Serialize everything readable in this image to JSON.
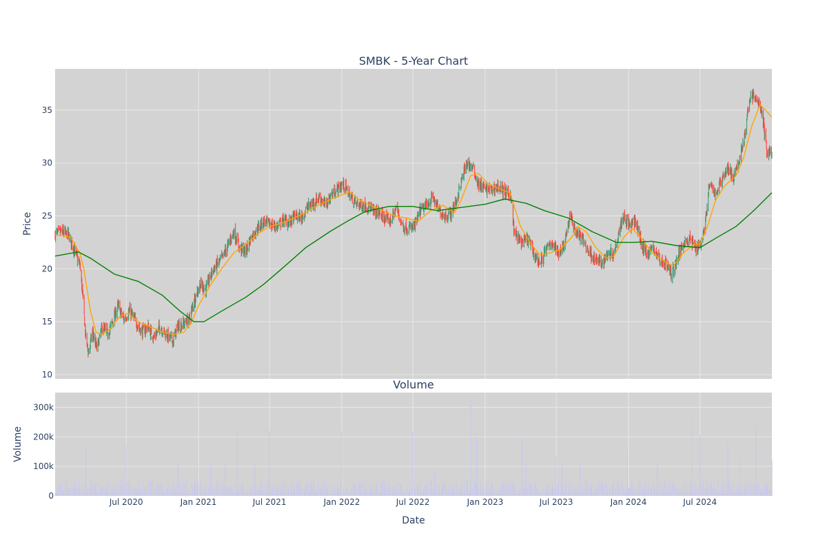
{
  "chart_data": [
    {
      "type": "candlestick",
      "title": "SMBK - 5-Year Chart",
      "ylabel": "Price",
      "xlabel": "",
      "ylim": [
        9.6,
        38.9
      ],
      "xlim": [
        "2020-01-02",
        "2024-12-31"
      ],
      "yticks": [
        10,
        15,
        20,
        25,
        30,
        35
      ],
      "xticks": [
        "2020-07-01",
        "2021-01-01",
        "2021-07-01",
        "2022-01-01",
        "2022-07-01",
        "2023-01-01",
        "2023-07-01",
        "2024-01-01",
        "2024-07-01"
      ],
      "grid": true,
      "colors": {
        "up": "#3d9970",
        "down": "#ff4136",
        "ma_short": "#ffa500",
        "ma_long": "#008000",
        "plot_bg": "#d3d3d3"
      },
      "close_path": [
        [
          "2020-01-02",
          23.3
        ],
        [
          "2020-01-20",
          23.5
        ],
        [
          "2020-02-05",
          23.2
        ],
        [
          "2020-02-20",
          21.8
        ],
        [
          "2020-03-05",
          20.3
        ],
        [
          "2020-03-12",
          17.5
        ],
        [
          "2020-03-20",
          13.5
        ],
        [
          "2020-03-27",
          12.0
        ],
        [
          "2020-04-06",
          14.0
        ],
        [
          "2020-04-17",
          12.4
        ],
        [
          "2020-05-01",
          14.5
        ],
        [
          "2020-05-15",
          13.8
        ],
        [
          "2020-06-01",
          15.5
        ],
        [
          "2020-06-10",
          16.5
        ],
        [
          "2020-06-25",
          15.2
        ],
        [
          "2020-07-10",
          16.0
        ],
        [
          "2020-07-25",
          15.0
        ],
        [
          "2020-08-10",
          14.0
        ],
        [
          "2020-08-25",
          14.5
        ],
        [
          "2020-09-10",
          13.5
        ],
        [
          "2020-09-25",
          14.5
        ],
        [
          "2020-10-10",
          13.8
        ],
        [
          "2020-10-28",
          13.2
        ],
        [
          "2020-11-10",
          14.6
        ],
        [
          "2020-11-25",
          14.8
        ],
        [
          "2020-12-10",
          15.3
        ],
        [
          "2020-12-22",
          17.2
        ],
        [
          "2021-01-05",
          18.5
        ],
        [
          "2021-01-20",
          18.1
        ],
        [
          "2021-02-05",
          19.8
        ],
        [
          "2021-02-20",
          20.5
        ],
        [
          "2021-03-05",
          21.2
        ],
        [
          "2021-03-20",
          22.5
        ],
        [
          "2021-04-01",
          23.5
        ],
        [
          "2021-04-15",
          22.0
        ],
        [
          "2021-05-01",
          21.6
        ],
        [
          "2021-05-15",
          23.0
        ],
        [
          "2021-05-31",
          23.8
        ],
        [
          "2021-06-15",
          24.5
        ],
        [
          "2021-07-01",
          24.2
        ],
        [
          "2021-07-20",
          24.0
        ],
        [
          "2021-08-05",
          24.6
        ],
        [
          "2021-08-20",
          24.4
        ],
        [
          "2021-09-05",
          25.0
        ],
        [
          "2021-09-20",
          24.8
        ],
        [
          "2021-10-05",
          25.8
        ],
        [
          "2021-10-20",
          26.2
        ],
        [
          "2021-11-05",
          26.8
        ],
        [
          "2021-11-20",
          26.0
        ],
        [
          "2021-12-05",
          27.0
        ],
        [
          "2021-12-20",
          27.5
        ],
        [
          "2022-01-05",
          28.0
        ],
        [
          "2022-01-20",
          27.0
        ],
        [
          "2022-02-05",
          26.2
        ],
        [
          "2022-02-20",
          26.0
        ],
        [
          "2022-03-05",
          26.0
        ],
        [
          "2022-03-20",
          25.5
        ],
        [
          "2022-04-05",
          25.3
        ],
        [
          "2022-04-20",
          24.8
        ],
        [
          "2022-05-05",
          24.5
        ],
        [
          "2022-05-20",
          25.8
        ],
        [
          "2022-06-05",
          24.0
        ],
        [
          "2022-06-20",
          23.8
        ],
        [
          "2022-07-05",
          24.0
        ],
        [
          "2022-07-20",
          25.5
        ],
        [
          "2022-08-05",
          26.0
        ],
        [
          "2022-08-20",
          26.8
        ],
        [
          "2022-09-05",
          25.5
        ],
        [
          "2022-09-20",
          25.0
        ],
        [
          "2022-10-05",
          25.2
        ],
        [
          "2022-10-20",
          26.5
        ],
        [
          "2022-11-01",
          28.2
        ],
        [
          "2022-11-15",
          30.0
        ],
        [
          "2022-11-30",
          29.5
        ],
        [
          "2022-12-15",
          28.0
        ],
        [
          "2023-01-01",
          27.5
        ],
        [
          "2023-01-20",
          27.5
        ],
        [
          "2023-02-05",
          27.8
        ],
        [
          "2023-02-20",
          27.2
        ],
        [
          "2023-03-08",
          27.0
        ],
        [
          "2023-03-15",
          23.5
        ],
        [
          "2023-04-01",
          22.5
        ],
        [
          "2023-04-20",
          22.8
        ],
        [
          "2023-05-05",
          21.5
        ],
        [
          "2023-05-20",
          20.5
        ],
        [
          "2023-06-05",
          21.8
        ],
        [
          "2023-06-20",
          22.5
        ],
        [
          "2023-07-05",
          21.5
        ],
        [
          "2023-07-20",
          22.2
        ],
        [
          "2023-08-05",
          25.0
        ],
        [
          "2023-08-20",
          23.5
        ],
        [
          "2023-09-05",
          22.8
        ],
        [
          "2023-09-20",
          21.8
        ],
        [
          "2023-10-05",
          21.0
        ],
        [
          "2023-10-25",
          20.5
        ],
        [
          "2023-11-10",
          21.5
        ],
        [
          "2023-11-25",
          21.5
        ],
        [
          "2023-12-10",
          24.0
        ],
        [
          "2023-12-20",
          25.0
        ],
        [
          "2024-01-05",
          24.0
        ],
        [
          "2024-01-20",
          24.5
        ],
        [
          "2024-02-05",
          22.0
        ],
        [
          "2024-02-20",
          21.5
        ],
        [
          "2024-03-05",
          22.0
        ],
        [
          "2024-03-20",
          20.8
        ],
        [
          "2024-04-05",
          20.5
        ],
        [
          "2024-04-20",
          19.5
        ],
        [
          "2024-05-05",
          21.0
        ],
        [
          "2024-05-20",
          22.5
        ],
        [
          "2024-06-05",
          22.8
        ],
        [
          "2024-06-20",
          22.0
        ],
        [
          "2024-07-05",
          22.5
        ],
        [
          "2024-07-15",
          24.5
        ],
        [
          "2024-07-25",
          28.0
        ],
        [
          "2024-08-10",
          27.0
        ],
        [
          "2024-08-25",
          28.5
        ],
        [
          "2024-09-10",
          29.5
        ],
        [
          "2024-09-25",
          28.5
        ],
        [
          "2024-10-10",
          30.5
        ],
        [
          "2024-10-25",
          33.0
        ],
        [
          "2024-11-06",
          36.5
        ],
        [
          "2024-11-20",
          36.0
        ],
        [
          "2024-12-01",
          35.5
        ],
        [
          "2024-12-10",
          33.5
        ],
        [
          "2024-12-18",
          31.0
        ],
        [
          "2024-12-31",
          31.0
        ]
      ],
      "series": [
        {
          "values": [
            [
              "2020-01-02",
              23.2
            ],
            [
              "2020-02-10",
              23.0
            ],
            [
              "2020-03-05",
              21.5
            ],
            [
              "2020-03-15",
              20.0
            ],
            [
              "2020-04-01",
              16.0
            ],
            [
              "2020-04-15",
              14.0
            ],
            [
              "2020-05-01",
              13.8
            ],
            [
              "2020-05-20",
              14.3
            ],
            [
              "2020-06-15",
              15.5
            ],
            [
              "2020-07-05",
              15.8
            ],
            [
              "2020-08-01",
              15.0
            ],
            [
              "2020-09-01",
              14.5
            ],
            [
              "2020-10-01",
              14.0
            ],
            [
              "2020-11-01",
              13.8
            ],
            [
              "2020-11-25",
              14.0
            ],
            [
              "2020-12-15",
              15.0
            ],
            [
              "2021-01-01",
              16.5
            ],
            [
              "2021-02-01",
              18.5
            ],
            [
              "2021-03-01",
              20.0
            ],
            [
              "2021-04-01",
              21.5
            ],
            [
              "2021-05-01",
              22.3
            ],
            [
              "2021-06-01",
              23.3
            ],
            [
              "2021-07-01",
              24.0
            ],
            [
              "2021-08-01",
              24.3
            ],
            [
              "2021-09-01",
              24.8
            ],
            [
              "2021-10-01",
              25.3
            ],
            [
              "2021-11-01",
              26.0
            ],
            [
              "2021-12-01",
              26.5
            ],
            [
              "2022-01-01",
              27.0
            ],
            [
              "2022-01-20",
              27.3
            ],
            [
              "2022-02-15",
              26.5
            ],
            [
              "2022-03-15",
              26.0
            ],
            [
              "2022-04-15",
              25.5
            ],
            [
              "2022-05-15",
              25.0
            ],
            [
              "2022-06-15",
              24.8
            ],
            [
              "2022-07-15",
              24.5
            ],
            [
              "2022-08-15",
              25.5
            ],
            [
              "2022-09-15",
              26.0
            ],
            [
              "2022-10-15",
              25.3
            ],
            [
              "2022-11-01",
              26.5
            ],
            [
              "2022-11-25",
              28.8
            ],
            [
              "2022-12-15",
              29.0
            ],
            [
              "2023-01-10",
              28.0
            ],
            [
              "2023-02-10",
              27.5
            ],
            [
              "2023-03-05",
              27.2
            ],
            [
              "2023-04-01",
              24.0
            ],
            [
              "2023-04-25",
              22.5
            ],
            [
              "2023-05-20",
              21.3
            ],
            [
              "2023-06-15",
              21.5
            ],
            [
              "2023-07-10",
              21.8
            ],
            [
              "2023-08-10",
              23.0
            ],
            [
              "2023-08-25",
              24.0
            ],
            [
              "2023-09-15",
              23.5
            ],
            [
              "2023-10-10",
              22.0
            ],
            [
              "2023-11-05",
              21.0
            ],
            [
              "2023-11-25",
              21.2
            ],
            [
              "2023-12-20",
              23.0
            ],
            [
              "2024-01-10",
              23.8
            ],
            [
              "2024-02-01",
              23.0
            ],
            [
              "2024-03-01",
              21.5
            ],
            [
              "2024-04-10",
              20.5
            ],
            [
              "2024-04-25",
              20.3
            ],
            [
              "2024-05-20",
              21.5
            ],
            [
              "2024-06-15",
              22.3
            ],
            [
              "2024-07-01",
              22.3
            ],
            [
              "2024-07-20",
              24.0
            ],
            [
              "2024-08-10",
              26.5
            ],
            [
              "2024-09-01",
              27.8
            ],
            [
              "2024-10-01",
              28.8
            ],
            [
              "2024-10-20",
              30.5
            ],
            [
              "2024-11-10",
              33.5
            ],
            [
              "2024-12-01",
              35.5
            ],
            [
              "2024-12-15",
              35.0
            ],
            [
              "2024-12-31",
              34.3
            ]
          ]
        },
        {
          "values": [
            [
              "2020-01-02",
              21.2
            ],
            [
              "2020-03-01",
              21.6
            ],
            [
              "2020-04-01",
              21.0
            ],
            [
              "2020-06-01",
              19.5
            ],
            [
              "2020-08-01",
              18.8
            ],
            [
              "2020-10-01",
              17.5
            ],
            [
              "2020-11-15",
              16.0
            ],
            [
              "2020-12-20",
              15.0
            ],
            [
              "2021-01-15",
              15.0
            ],
            [
              "2021-03-01",
              16.0
            ],
            [
              "2021-05-01",
              17.3
            ],
            [
              "2021-06-15",
              18.5
            ],
            [
              "2021-08-01",
              20.0
            ],
            [
              "2021-10-01",
              22.0
            ],
            [
              "2021-12-01",
              23.5
            ],
            [
              "2022-01-15",
              24.5
            ],
            [
              "2022-03-01",
              25.4
            ],
            [
              "2022-05-01",
              25.9
            ],
            [
              "2022-07-01",
              25.9
            ],
            [
              "2022-09-01",
              25.5
            ],
            [
              "2022-11-01",
              25.8
            ],
            [
              "2023-01-01",
              26.1
            ],
            [
              "2023-02-20",
              26.6
            ],
            [
              "2023-04-15",
              26.2
            ],
            [
              "2023-06-01",
              25.5
            ],
            [
              "2023-08-01",
              24.8
            ],
            [
              "2023-10-01",
              23.5
            ],
            [
              "2023-12-01",
              22.5
            ],
            [
              "2024-01-15",
              22.5
            ],
            [
              "2024-03-01",
              22.6
            ],
            [
              "2024-05-01",
              22.2
            ],
            [
              "2024-07-01",
              22.0
            ],
            [
              "2024-08-15",
              23.0
            ],
            [
              "2024-10-01",
              24.0
            ],
            [
              "2024-11-15",
              25.5
            ],
            [
              "2024-12-31",
              27.2
            ]
          ]
        }
      ]
    },
    {
      "type": "bar",
      "title": "Volume",
      "xlabel": "Date",
      "ylabel": "Volume",
      "ylim": [
        0,
        350000
      ],
      "yticks": [
        0,
        100000,
        200000,
        300000
      ],
      "ytick_labels": [
        "0",
        "100k",
        "200k",
        "300k"
      ],
      "xtick_labels": [
        "Jul 2020",
        "Jan 2021",
        "Jul 2021",
        "Jan 2022",
        "Jul 2022",
        "Jan 2023",
        "Jul 2023",
        "Jan 2024",
        "Jul 2024"
      ],
      "color": "#c8c8ee",
      "spikes": [
        [
          "2020-03-20",
          165000
        ],
        [
          "2020-06-30",
          170000
        ],
        [
          "2020-11-10",
          110000
        ],
        [
          "2020-12-30",
          105000
        ],
        [
          "2021-02-01",
          110000
        ],
        [
          "2021-03-10",
          110000
        ],
        [
          "2021-04-10",
          205000
        ],
        [
          "2021-05-25",
          110000
        ],
        [
          "2021-07-01",
          220000
        ],
        [
          "2021-12-31",
          220000
        ],
        [
          "2022-06-30",
          220000
        ],
        [
          "2022-08-25",
          75000
        ],
        [
          "2022-11-25",
          335000
        ],
        [
          "2022-12-10",
          200000
        ],
        [
          "2023-04-05",
          190000
        ],
        [
          "2023-04-15",
          110000
        ],
        [
          "2023-06-30",
          135000
        ],
        [
          "2023-07-15",
          105000
        ],
        [
          "2023-08-31",
          110000
        ],
        [
          "2023-12-29",
          150000
        ],
        [
          "2024-03-15",
          115000
        ],
        [
          "2024-06-10",
          280000
        ],
        [
          "2024-07-01",
          205000
        ],
        [
          "2024-09-10",
          175000
        ],
        [
          "2024-10-10",
          135000
        ],
        [
          "2024-11-20",
          240000
        ],
        [
          "2024-12-31",
          120000
        ]
      ]
    }
  ]
}
